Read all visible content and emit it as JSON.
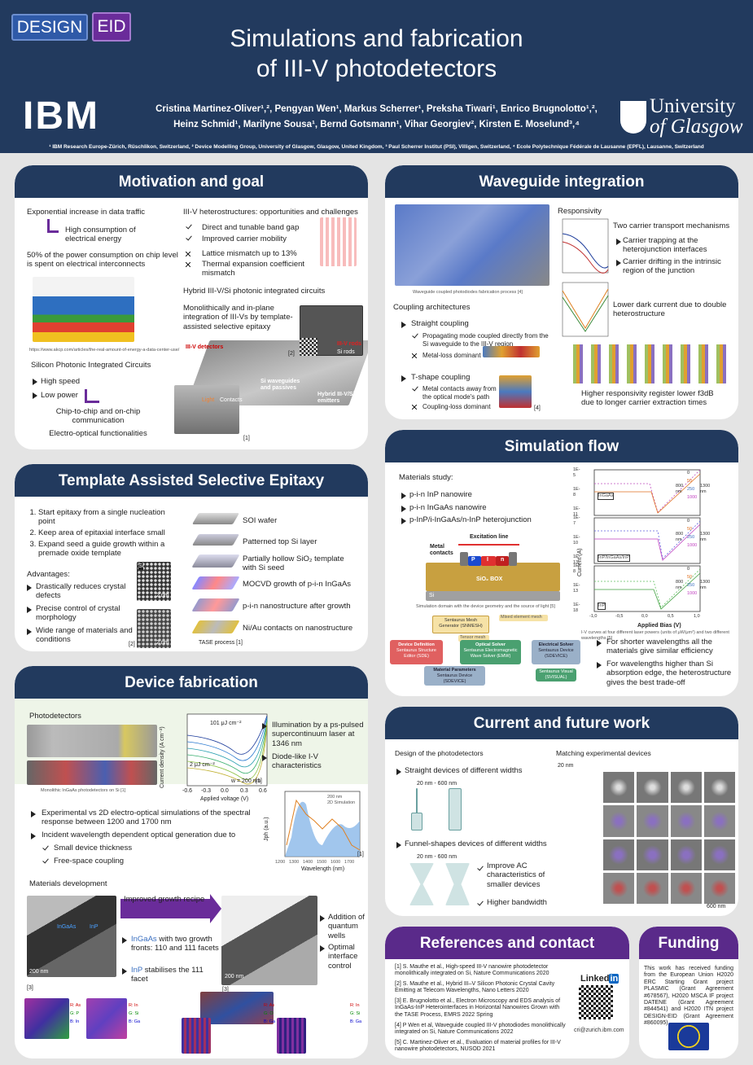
{
  "header": {
    "logo": [
      "DESIGN",
      "EID"
    ],
    "title": [
      "Simulations and fabrication",
      "of III-V photodetectors"
    ],
    "authors": [
      "Cristina Martinez-Oliver¹,², Pengyan Wen¹, Markus Scherrer¹, Preksha Tiwari¹, Enrico Brugnolotto¹,²,",
      "Heinz Schmid¹, Marilyne Sousa¹, Bernd Gotsmann¹, Vihar Georgiev², Kirsten E. Moselund³,⁴"
    ],
    "affiliations": "¹ IBM Research Europe-Zürich, Rüschlikon, Switzerland, ² Device Modelling Group, University of Glasgow, Glasgow, United Kingdom, ³ Paul Scherrer Institut (PSI), Villigen, Switzerland, ⁴ Ecole Polytechnique Fédérale de Lausanne (EPFL), Lausanne, Switzerland",
    "ibm": "IBM",
    "glasgow": [
      "University",
      "of Glasgow"
    ]
  },
  "motivation": {
    "title": "Motivation and goal",
    "traffic": "Exponential increase in data traffic",
    "energy": "High consumption of electrical energy",
    "power": "50% of the power consumption on chip level is spent on electrical interconnects",
    "source": "https://www.akcp.com/articles/the-real-amount-of-energy-a-data-center-use/",
    "sipic": "Silicon Photonic Integrated Circuits",
    "sipic_items": [
      "High speed",
      "Low power"
    ],
    "chip": "Chip-to-chip and on-chip communication",
    "eo": "Electro-optical functionalities",
    "hetero": "III-V heterostructures: opportunities and challenges",
    "pros": [
      "Direct and tunable band gap",
      "Improved carrier mobility"
    ],
    "cons": [
      "Lattice mismatch up to 13%",
      "Thermal expansion coefficient mismatch"
    ],
    "hybrid": "Hybrid III-V/Si photonic integrated circuits",
    "mono": "Monolithically and in-plane integration of III-Vs by template-assisted selective epitaxy",
    "fig": {
      "detectors": "III-V detectors",
      "waveguides": "Si waveguides and passives",
      "emitters": "Hybrid III-V/Si emitters",
      "rods3": "III-V rods",
      "rodsSi": "Si rods",
      "light": "Light",
      "contacts": "Contacts",
      "ref1": "[1]",
      "ref2": "[2]"
    }
  },
  "tase": {
    "title": "Template Assisted Selective Epitaxy",
    "steps": [
      "Start epitaxy from a single nucleation point",
      "Keep area of epitaxial interface small",
      "Expand seed a guide growth within a premade oxide template"
    ],
    "adv_title": "Advantages:",
    "adv": [
      "Drastically reduces crystal defects",
      "Precise control of crystal morphology",
      "Wide range of materials and conditions"
    ],
    "si": "Si",
    "scale": [
      "2 nm",
      "2 nm"
    ],
    "ref": "[2]",
    "process": [
      "SOI wafer",
      "Patterned top Si layer",
      "Partially hollow SiO₂ template with Si seed",
      "MOCVD growth of p-i-n InGaAs",
      "p-i-n nanostructure after growth",
      "Ni/Au contacts on nanostructure"
    ],
    "caption": "TASE process [1]"
  },
  "device": {
    "title": "Device fabrication",
    "photodetectors": "Photodetectors",
    "caption": "Monolithic InGaAs photodetectors on Si [1]",
    "iv": {
      "ylabel": "Current density (A cm⁻²)",
      "xlabel": "Applied voltage (V)",
      "xticks": [
        "-0.6",
        "-0.3",
        "0.0",
        "0.3",
        "0.6"
      ],
      "high": "101 μJ cm⁻²",
      "low": "2 μJ cm⁻²",
      "width": "w = 200 nm",
      "ref": "[1]"
    },
    "spec": {
      "legend": [
        "200 nm",
        "2D Simulation"
      ],
      "xlabel": "Wavelength (nm)",
      "ylabel": "Jph (a.u.)",
      "xticks": [
        "1200",
        "1300",
        "1400",
        "1500",
        "1600",
        "1700"
      ],
      "ref": "[1]"
    },
    "right": [
      "Illumination by a ps-pulsed supercontinuum laser at 1346 nm",
      "Diode-like I-V characteristics"
    ],
    "points": [
      "Experimental vs 2D electro-optical simulations of the spectral response between 1200 and 1700 nm",
      "Incident wavelength dependent optical generation due to"
    ],
    "subpoints": [
      "Small device thickness",
      "Free-space coupling"
    ],
    "materials": "Materials development",
    "recipe": "Improved growth recipe",
    "ingaas": "InGaAs",
    "ingaas_rest": " with two growth fronts: 110 and 111 facets",
    "inp": "InP",
    "inp_rest": " stabilises the 111 facet",
    "after": [
      "Addition of quantum wells",
      "Optimal interface control"
    ],
    "scale": [
      "200 nm",
      "200 nm"
    ],
    "refs": [
      "[3]",
      "[3]"
    ],
    "eds": [
      [
        "R: As",
        "G: P",
        "B: In"
      ],
      [
        "R: In",
        "G: Si",
        "B: Ga"
      ],
      [
        "R: As",
        "G: O",
        "B: Ga"
      ],
      [
        "R: In",
        "G: Si",
        "B: Ga"
      ]
    ]
  },
  "waveguide": {
    "title": "Waveguide integration",
    "caption": "Waveguide coupled photodiodes fabrication process [4]",
    "coupling": "Coupling architectures",
    "straight": "Straight coupling",
    "straight_pro": "Propagating mode coupled directly from the Si waveguide to the III-V region",
    "straight_con": "Metal-loss dominant",
    "tshape": "T-shape coupling",
    "tshape_pro": "Metal contacts away from the optical mode's path",
    "tshape_con": "Coupling-loss dominant",
    "responsivity": "Responsivity",
    "two": "Two carrier transport mechanisms",
    "mech": [
      "Carrier trapping at the heterojunction interfaces",
      "Carrier drifting in the intrinsic region of the junction"
    ],
    "dark": "Lower dark current due to double heterostructure",
    "higher": "Higher responsivity register lower f3dB due to longer carrier extraction times",
    "ref": "[4]"
  },
  "simulation": {
    "title": "Simulation flow",
    "materials": "Materials study:",
    "list": [
      "p-i-n InP nanowire",
      "p-i-n InGaAs nanowire",
      "p-InP/i-InGaAs/n-InP heterojunction"
    ],
    "domain": {
      "excitation": "Excitation line",
      "metal": "Metal contacts",
      "p": "P",
      "i": "I",
      "n": "n",
      "box": "SiO₂ BOX",
      "si": "Si",
      "caption": "Simulation domain with the device geometry and the source of light [5]"
    },
    "flow": {
      "mesh": "Sentaurus Mesh Generator (SNMESH)",
      "mixed": "Mixed element mesh",
      "tensor": "Tensor mesh",
      "def": "Device Definition",
      "def_tool": "Sentaurus Structure Editor (SDE)",
      "opt": "Optical Solver",
      "opt_tool": "Sentaurus Electromagnetic Wave Solver (EMW)",
      "elec": "Electrical Solver",
      "elec_tool": "Sentaurus Device (SDEVICE)",
      "mat": "Material Parameters",
      "mat_tool": "Sentaurus Device (SDEVICE)",
      "visual": "Sentaurus Visual (SVISUAL)"
    },
    "iv": {
      "panels": [
        "InGaAs",
        "InP/InGaAs/InP",
        "InP"
      ],
      "yticks": [
        [
          "1E-5",
          "1E-8",
          "1E-11"
        ],
        [
          "1E-7",
          "1E-10",
          "1E-13"
        ],
        [
          "1E-8",
          "1E-13",
          "1E-18"
        ]
      ],
      "xticks": [
        "-1,0",
        "-0,5",
        "0,0",
        "0,5",
        "1,0"
      ],
      "legend": [
        "0",
        "50",
        "250",
        "1000"
      ],
      "wl": [
        "800 nm",
        "1300 nm"
      ],
      "ylabel": "Current (A)",
      "xlabel": "Applied Bias (V)",
      "caption": "I-V curves at four different laser powers (units of μW/μm²) and two different wavelengths [5]"
    },
    "points": [
      "For shorter wavelengths all the materials give similar efficiency",
      "For wavelengths higher than Si absorption edge, the heterostructure gives the best trade-off"
    ]
  },
  "future": {
    "title": "Current and future work",
    "design": "Design of the photodetectors",
    "straight": "Straight devices of different widths",
    "range1": "20 nm - 600 nm",
    "funnel": "Funnel-shapes devices of different widths",
    "range2": "20 nm - 600 nm",
    "benefits": [
      "Improve AC characteristics of smaller devices",
      "Higher bandwidth"
    ],
    "matching": "Matching experimental devices",
    "small": "20 nm",
    "large": "600 nm"
  },
  "references": {
    "title": "References and contact",
    "list": [
      "[1]  S. Mauthe et al., High-speed III-V nanowire photodetector monolithically integrated on Si, Nature Communications 2020",
      "[2]  S. Mauthe et al., Hybrid III–V Silicon Photonic Crystal Cavity Emitting at Telecom Wavelengths, Nano Letters 2020",
      "[3]  E. Brugnolotto et al., Electron Microscopy and EDS analysis of InGaAs-InP Heterointerfaces in Horizontal Nanowires Grown with the TASE Process, EMRS 2022 Spring",
      "[4]  P Wen et al, Waveguide coupled III-V photodiodes monolithically integrated on Si, Nature Communications 2022",
      "[5]  C. Martinez-Oliver et al., Evaluation of material profiles for III-V nanowire photodetectors, NUSOD 2021"
    ],
    "linkedin": [
      "Linked",
      "in"
    ],
    "email": "cri@zurich.ibm.com"
  },
  "funding": {
    "title": "Funding",
    "text": "This work has received funding from the European Union H2020 ERC Starting Grant project PLASMIC (Grant Agreement #678567), H2020 MSCA IF project DATENE (Grant Agreement #844541) and H2020 ITN project DESIGN-EID (Grant Agreement #860095)"
  }
}
